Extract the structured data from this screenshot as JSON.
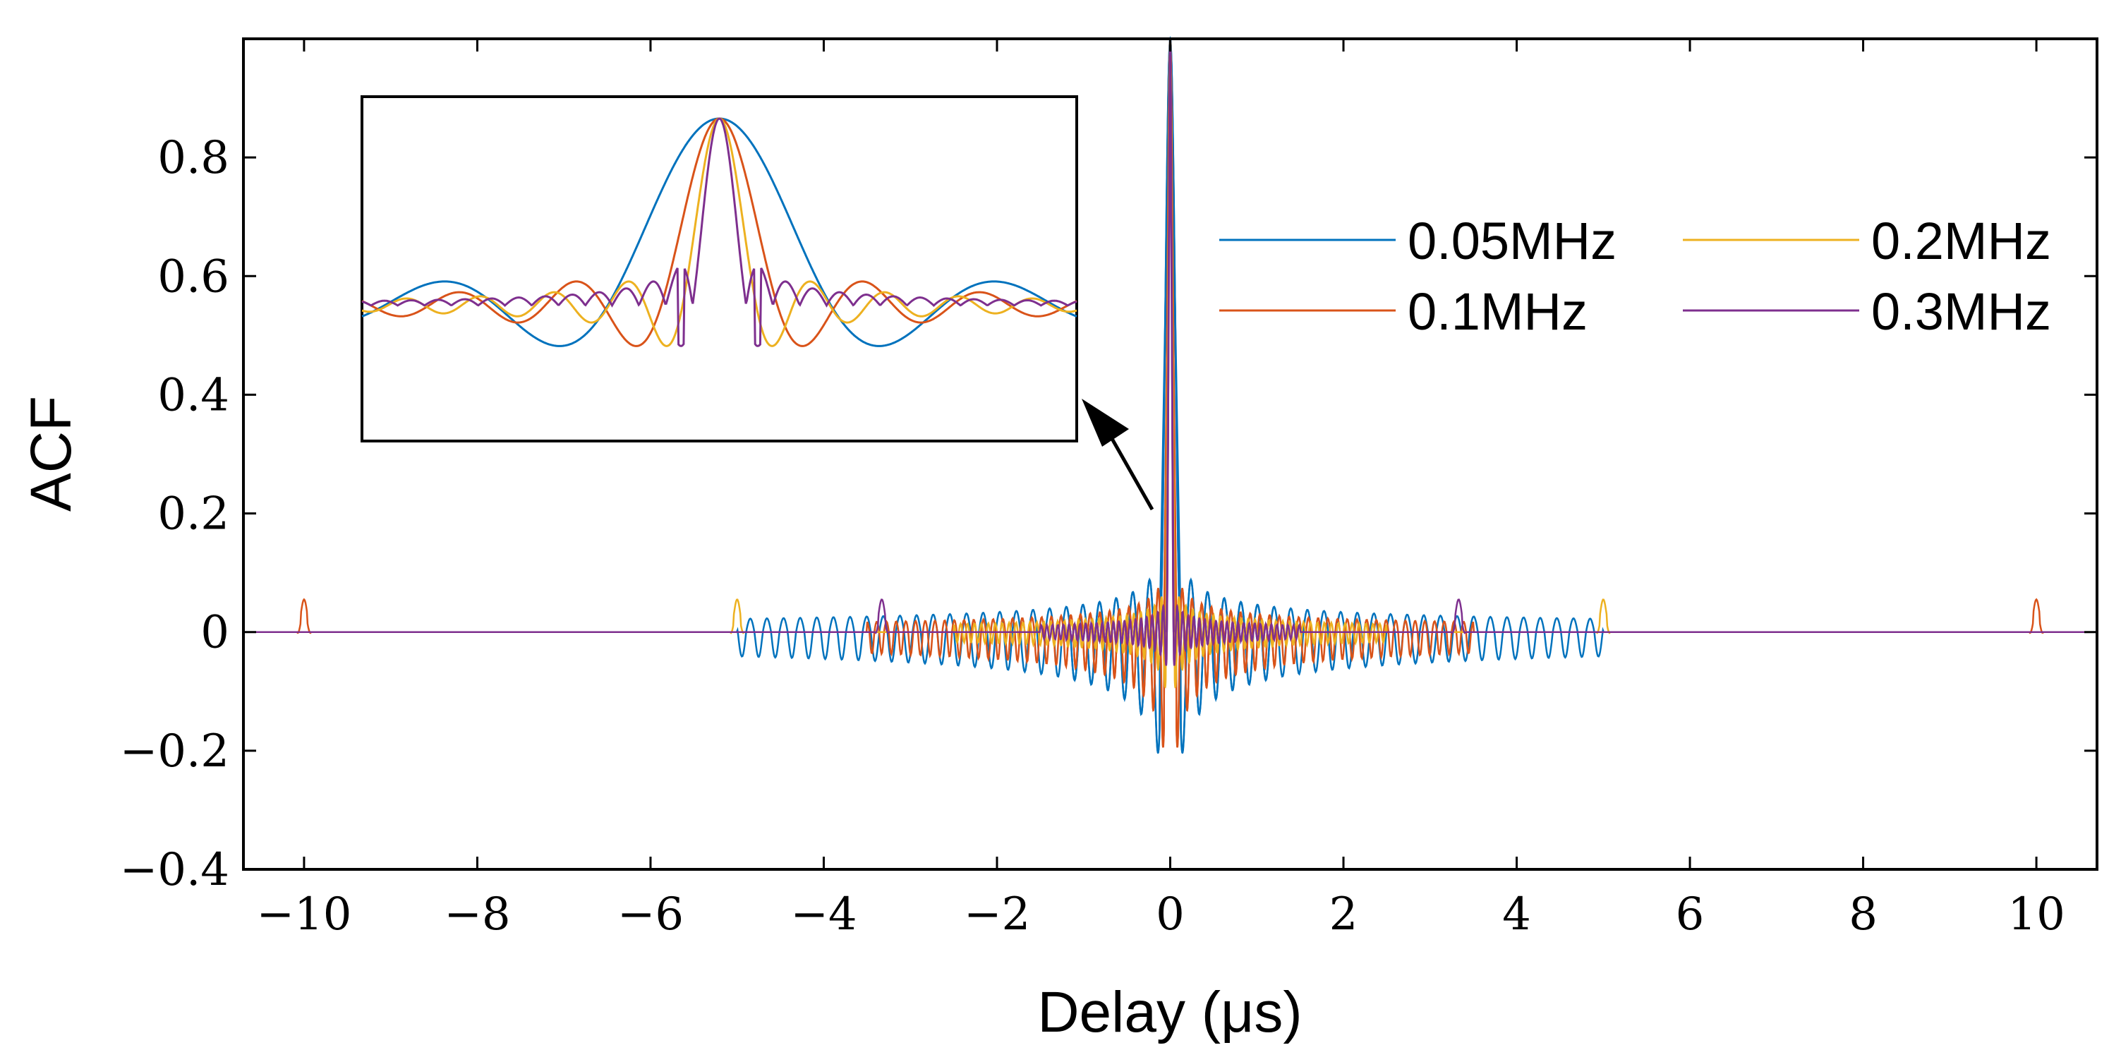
{
  "chart_data": {
    "type": "line",
    "title": "",
    "xlabel": "Delay (μs)",
    "ylabel": "ACF",
    "xlim": [
      -10.7,
      10.7
    ],
    "ylim": [
      -0.4,
      1.0
    ],
    "xticks": [
      -10,
      -8,
      -6,
      -4,
      -2,
      0,
      2,
      4,
      6,
      8,
      10
    ],
    "xtick_labels": [
      "−10",
      "−8",
      "−6",
      "−4",
      "−2",
      "0",
      "2",
      "4",
      "6",
      "8",
      "10"
    ],
    "yticks": [
      -0.4,
      -0.2,
      0,
      0.2,
      0.4,
      0.6,
      0.8
    ],
    "ytick_labels": [
      "−0.4",
      "−0.2",
      "0",
      "0.2",
      "0.4",
      "0.6",
      "0.8"
    ],
    "grid": false,
    "legend_position": "top-right",
    "series": [
      {
        "name": "0.05MHz",
        "color": "#0072bd",
        "mainlobe_width_us": 0.12,
        "sidelobe_peak": 0.12,
        "sidelobe_min": -0.22,
        "sidelobe_extent_us": 5.0,
        "grating_lobes": [],
        "grating_lobe_height": 0
      },
      {
        "name": "0.1MHz",
        "color": "#d95319",
        "mainlobe_width_us": 0.07,
        "sidelobe_peak": 0.1,
        "sidelobe_min": -0.21,
        "sidelobe_extent_us": 3.5,
        "grating_lobes": [
          -10,
          10
        ],
        "grating_lobe_height": 0.055
      },
      {
        "name": "0.2MHz",
        "color": "#edb120",
        "mainlobe_width_us": 0.05,
        "sidelobe_peak": 0.08,
        "sidelobe_min": -0.1,
        "sidelobe_extent_us": 2.5,
        "grating_lobes": [
          -5,
          5
        ],
        "grating_lobe_height": 0.055
      },
      {
        "name": "0.3MHz",
        "color": "#7e2f8e",
        "mainlobe_width_us": 0.04,
        "sidelobe_peak": 0.06,
        "sidelobe_min": -0.06,
        "sidelobe_extent_us": 1.5,
        "grating_lobes": [
          -3.33,
          3.33
        ],
        "grating_lobe_height": 0.055
      }
    ],
    "annotations": [
      {
        "type": "inset",
        "content": "zoomed view of main lobe near zero delay, sinc-like curves for all four series"
      },
      {
        "type": "arrow",
        "from": "main lobe at 0",
        "to": "inset"
      }
    ]
  }
}
